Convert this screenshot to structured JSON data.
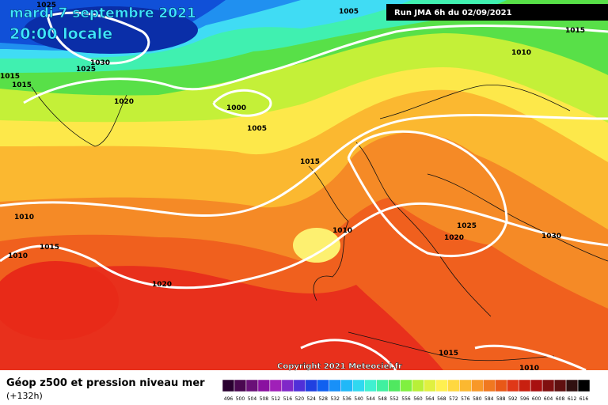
{
  "header": {
    "title": "mardi 7 septembre 2021",
    "time": "20:00 locale",
    "run": "Run JMA 6h du 02/09/2021"
  },
  "isobar_labels": [
    1025,
    1005,
    1015,
    1010,
    1030,
    1025,
    1015,
    1015,
    1020,
    1000,
    1005,
    1015,
    1010,
    1015,
    1010,
    1010,
    1025,
    1020,
    1030,
    1020,
    1015,
    1010
  ],
  "copyright": "Copyright 2021 Meteociel.fr",
  "footer": {
    "title": "Géop z500 et pression niveau mer",
    "lead": "(+132h)"
  },
  "color_scale": [
    496,
    500,
    504,
    508,
    512,
    516,
    520,
    524,
    528,
    532,
    536,
    540,
    544,
    548,
    552,
    556,
    560,
    564,
    568,
    572,
    576,
    580,
    584,
    588,
    592,
    596,
    600,
    604,
    608,
    612,
    616
  ]
}
